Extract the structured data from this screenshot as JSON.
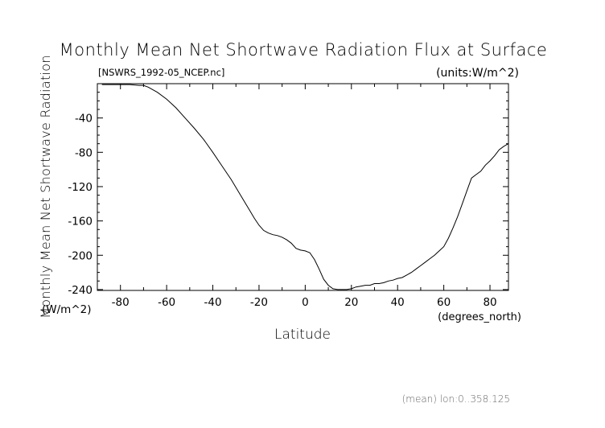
{
  "chart_data": {
    "type": "line",
    "title": "Monthly Mean Net Shortwave Radiation Flux at Surface",
    "file_label": "[NSWRS_1992-05_NCEP.nc]",
    "units_label": "(units:W/m^2)",
    "ylabel": "Monthly Mean Net Shortwave Radiation",
    "yunits": "(W/m^2)",
    "xlabel": "Latitude",
    "xunits": "(degrees_north)",
    "footnote": "(mean) lon:0..358.125",
    "xlim": [
      -90,
      88
    ],
    "ylim": [
      -241,
      0
    ],
    "xticks": [
      -80,
      -60,
      -40,
      -20,
      0,
      20,
      40,
      60,
      80
    ],
    "yticks": [
      -40,
      -80,
      -120,
      -160,
      -200,
      -240
    ],
    "series": [
      {
        "x": [
          -88,
          -84,
          -80,
          -76,
          -72,
          -70,
          -68,
          -64,
          -60,
          -56,
          -52,
          -48,
          -44,
          -40,
          -36,
          -32,
          -28,
          -24,
          -22,
          -20,
          -18,
          -16,
          -14,
          -12,
          -10,
          -8,
          -6,
          -4,
          -2,
          0,
          2,
          4,
          6,
          8,
          10,
          12,
          14,
          16,
          18,
          20,
          22,
          24,
          26,
          28,
          30,
          32,
          34,
          36,
          38,
          40,
          42,
          44,
          46,
          48,
          50,
          52,
          54,
          56,
          58,
          60,
          62,
          64,
          66,
          68,
          70,
          72,
          74,
          76,
          78,
          80,
          82,
          84,
          86,
          88
        ],
        "y": [
          -1,
          -1,
          -1,
          -1,
          -2,
          -2,
          -4,
          -10,
          -18,
          -28,
          -40,
          -52,
          -65,
          -80,
          -96,
          -112,
          -130,
          -148,
          -157,
          -165,
          -171,
          -174,
          -176,
          -177,
          -179,
          -182,
          -186,
          -192,
          -194,
          -195,
          -197,
          -205,
          -216,
          -228,
          -235,
          -239,
          -240,
          -240,
          -240,
          -239,
          -237,
          -236,
          -235,
          -235,
          -233,
          -233,
          -232,
          -230,
          -229,
          -227,
          -226,
          -223,
          -220,
          -216,
          -212,
          -208,
          -204,
          -200,
          -195,
          -190,
          -180,
          -168,
          -155,
          -140,
          -125,
          -110,
          -106,
          -102,
          -95,
          -90,
          -84,
          -77,
          -73,
          -70
        ]
      }
    ]
  }
}
